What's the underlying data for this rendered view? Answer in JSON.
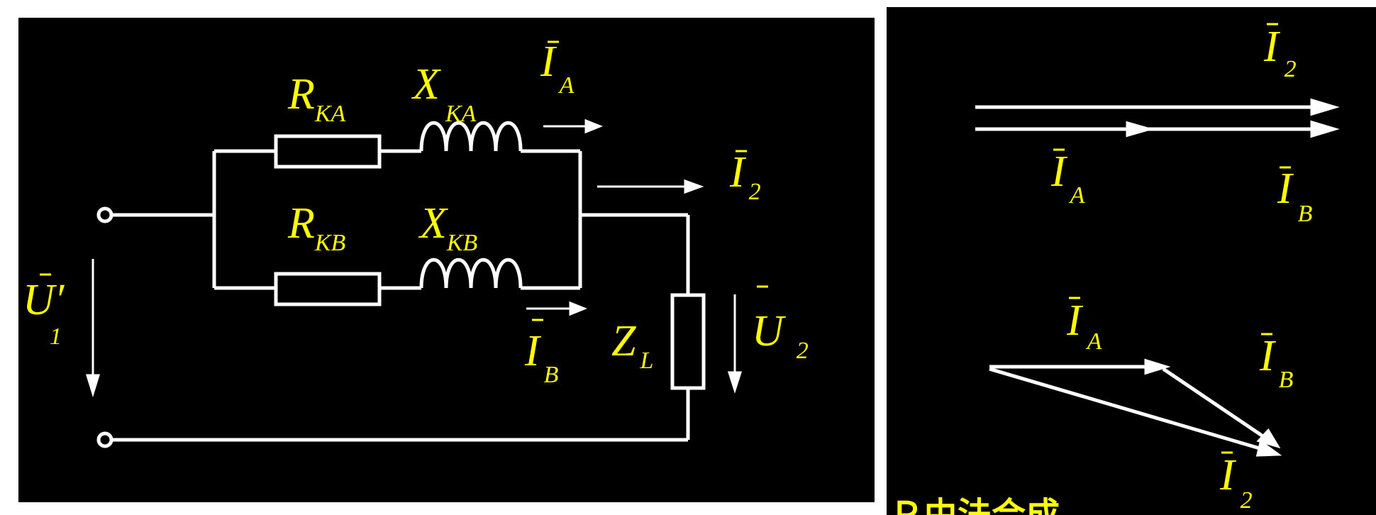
{
  "colors": {
    "background": "#000000",
    "wire": "#ffffff",
    "label": "#ffff00"
  },
  "circuit": {
    "r_ka": {
      "main": "R",
      "sub": "KA"
    },
    "x_ka": {
      "main": "X",
      "sub": "KA"
    },
    "r_kb": {
      "main": "R",
      "sub": "KB"
    },
    "x_kb": {
      "main": "X",
      "sub": "KB"
    },
    "i_a": {
      "main": "I",
      "sub": "A"
    },
    "i_b": {
      "main": "I",
      "sub": "B"
    },
    "i_2": {
      "main": "I",
      "sub": "2"
    },
    "u_1": {
      "main": "U",
      "prime": "′",
      "sub": "1"
    },
    "u_2": {
      "main": "U",
      "sub": "2"
    },
    "z_l": {
      "main": "Z",
      "sub": "L"
    }
  },
  "phasor": {
    "top_i2": {
      "main": "I",
      "sub": "2"
    },
    "top_ia": {
      "main": "I",
      "sub": "A"
    },
    "top_ib": {
      "main": "I",
      "sub": "B"
    },
    "bot_ia": {
      "main": "I",
      "sub": "A"
    },
    "bot_ib": {
      "main": "I",
      "sub": "B"
    },
    "bot_i2": {
      "main": "I",
      "sub": "2"
    },
    "cut_text": "Ｐ由法合成"
  }
}
